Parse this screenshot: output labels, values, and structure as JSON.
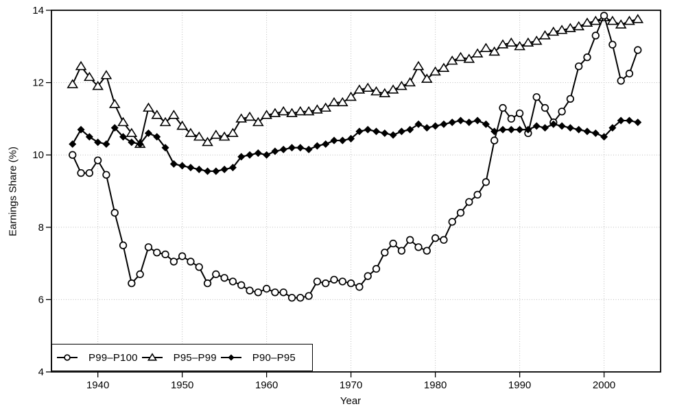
{
  "figure": {
    "x_axis_label": "Year",
    "y_axis_label": "Earnings Share (%)"
  },
  "chart_data": {
    "type": "line",
    "x": [
      1937,
      1938,
      1939,
      1940,
      1941,
      1942,
      1943,
      1944,
      1945,
      1946,
      1947,
      1948,
      1949,
      1950,
      1951,
      1952,
      1953,
      1954,
      1955,
      1956,
      1957,
      1958,
      1959,
      1960,
      1961,
      1962,
      1963,
      1964,
      1965,
      1966,
      1967,
      1968,
      1969,
      1970,
      1971,
      1972,
      1973,
      1974,
      1975,
      1976,
      1977,
      1978,
      1979,
      1980,
      1981,
      1982,
      1983,
      1984,
      1985,
      1986,
      1987,
      1988,
      1989,
      1990,
      1991,
      1992,
      1993,
      1994,
      1995,
      1996,
      1997,
      1998,
      1999,
      2000,
      2001,
      2002,
      2003,
      2004
    ],
    "series": [
      {
        "name": "P99–P100",
        "marker": "circle",
        "values": [
          10.0,
          9.5,
          9.5,
          9.85,
          9.45,
          8.4,
          7.5,
          6.45,
          6.7,
          7.45,
          7.3,
          7.25,
          7.05,
          7.2,
          7.05,
          6.9,
          6.45,
          6.7,
          6.6,
          6.5,
          6.4,
          6.25,
          6.2,
          6.3,
          6.2,
          6.2,
          6.05,
          6.05,
          6.1,
          6.5,
          6.45,
          6.55,
          6.5,
          6.45,
          6.35,
          6.65,
          6.85,
          7.3,
          7.55,
          7.35,
          7.65,
          7.45,
          7.35,
          7.7,
          7.65,
          8.15,
          8.4,
          8.7,
          8.9,
          9.25,
          10.4,
          11.3,
          11.0,
          11.15,
          10.6,
          11.6,
          11.3,
          10.9,
          11.2,
          11.55,
          12.45,
          12.7,
          13.3,
          13.85,
          13.05,
          12.05,
          12.25,
          12.9
        ]
      },
      {
        "name": "P95–P99",
        "marker": "triangle",
        "values": [
          11.95,
          12.45,
          12.15,
          11.9,
          12.2,
          11.4,
          10.9,
          10.6,
          10.3,
          11.3,
          11.1,
          10.9,
          11.1,
          10.8,
          10.6,
          10.5,
          10.35,
          10.55,
          10.5,
          10.6,
          11.0,
          11.05,
          10.9,
          11.1,
          11.15,
          11.2,
          11.15,
          11.2,
          11.2,
          11.25,
          11.3,
          11.45,
          11.45,
          11.6,
          11.8,
          11.85,
          11.75,
          11.7,
          11.8,
          11.9,
          12.0,
          12.45,
          12.1,
          12.3,
          12.4,
          12.6,
          12.7,
          12.65,
          12.8,
          12.95,
          12.85,
          13.05,
          13.1,
          13.0,
          13.1,
          13.15,
          13.3,
          13.4,
          13.45,
          13.5,
          13.55,
          13.65,
          13.7,
          13.8,
          13.7,
          13.6,
          13.7,
          13.75
        ]
      },
      {
        "name": "P90–P95",
        "marker": "diamond",
        "values": [
          10.3,
          10.7,
          10.5,
          10.35,
          10.3,
          10.75,
          10.5,
          10.35,
          10.3,
          10.6,
          10.5,
          10.2,
          9.75,
          9.7,
          9.65,
          9.6,
          9.55,
          9.55,
          9.6,
          9.65,
          9.95,
          10.0,
          10.05,
          10.0,
          10.1,
          10.15,
          10.2,
          10.2,
          10.15,
          10.25,
          10.3,
          10.4,
          10.4,
          10.45,
          10.65,
          10.7,
          10.65,
          10.6,
          10.55,
          10.65,
          10.7,
          10.85,
          10.75,
          10.8,
          10.85,
          10.9,
          10.95,
          10.9,
          10.95,
          10.85,
          10.65,
          10.7,
          10.7,
          10.7,
          10.7,
          10.8,
          10.75,
          10.85,
          10.8,
          10.75,
          10.7,
          10.65,
          10.6,
          10.5,
          10.75,
          10.95,
          10.95,
          10.9
        ]
      }
    ],
    "title": "",
    "xlabel": "Year",
    "ylabel": "Earnings Share (%)",
    "xlim": [
      1934.5,
      2006.7
    ],
    "ylim": [
      4,
      14
    ],
    "x_ticks": [
      1940,
      1950,
      1960,
      1970,
      1980,
      1990,
      2000
    ],
    "y_ticks": [
      4,
      6,
      8,
      10,
      12,
      14
    ],
    "grid": true,
    "legend_position": "bottom-left",
    "line_color": "#000000",
    "grid_color": "#bbbbbb",
    "background_color": "#ffffff"
  }
}
